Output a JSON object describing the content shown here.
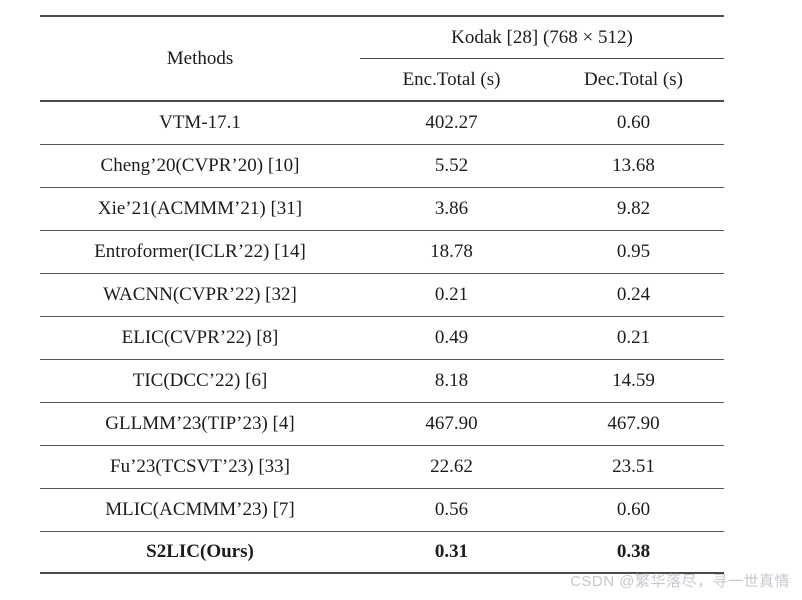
{
  "colors": {
    "background": "#ffffff",
    "text": "#1c1c1c",
    "rule_thick": "#4a4a4a",
    "rule_thin": "#585858",
    "watermark": "#c9c7ce"
  },
  "table": {
    "header": {
      "methods": "Methods",
      "group": "Kodak [28] (768 × 512)",
      "enc": "Enc.Total (s)",
      "dec": "Dec.Total (s)"
    },
    "rows": [
      {
        "method": "VTM-17.1",
        "enc": "402.27",
        "dec": "0.60",
        "bold": false
      },
      {
        "method": "Cheng’20(CVPR’20) [10]",
        "enc": "5.52",
        "dec": "13.68",
        "bold": false
      },
      {
        "method": "Xie’21(ACMMM’21) [31]",
        "enc": "3.86",
        "dec": "9.82",
        "bold": false
      },
      {
        "method": "Entroformer(ICLR’22) [14]",
        "enc": "18.78",
        "dec": "0.95",
        "bold": false
      },
      {
        "method": "WACNN(CVPR’22) [32]",
        "enc": "0.21",
        "dec": "0.24",
        "bold": false
      },
      {
        "method": "ELIC(CVPR’22) [8]",
        "enc": "0.49",
        "dec": "0.21",
        "bold": false
      },
      {
        "method": "TIC(DCC’22) [6]",
        "enc": "8.18",
        "dec": "14.59",
        "bold": false
      },
      {
        "method": "GLLMM’23(TIP’23) [4]",
        "enc": "467.90",
        "dec": "467.90",
        "bold": false
      },
      {
        "method": "Fu’23(TCSVT’23) [33]",
        "enc": "22.62",
        "dec": "23.51",
        "bold": false
      },
      {
        "method": "MLIC(ACMMM’23) [7]",
        "enc": "0.56",
        "dec": "0.60",
        "bold": false
      },
      {
        "method": "S2LIC(Ours)",
        "enc": "0.31",
        "dec": "0.38",
        "bold": true
      }
    ]
  },
  "watermark": {
    "text": "CSDN @繁华落尽，寻一世真情"
  }
}
